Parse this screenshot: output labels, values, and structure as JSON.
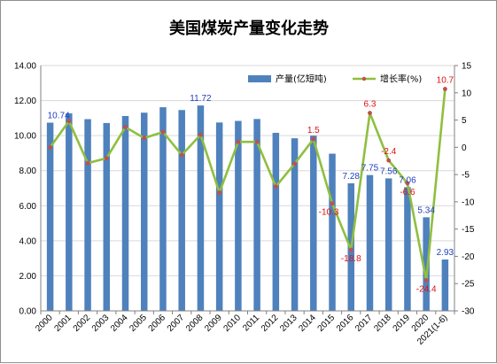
{
  "chart_data": {
    "type": "bar",
    "title": "美国煤炭产量变化走势",
    "categories": [
      "2000",
      "2001",
      "2002",
      "2003",
      "2004",
      "2005",
      "2006",
      "2007",
      "2008",
      "2009",
      "2010",
      "2011",
      "2012",
      "2013",
      "2014",
      "2015",
      "2016",
      "2017",
      "2018",
      "2019",
      "2020",
      "2021(1-6)"
    ],
    "series": [
      {
        "name": "产量(亿短吨)",
        "type": "bar",
        "axis": "left",
        "color": "#4f81bd",
        "values": [
          10.74,
          11.27,
          10.94,
          10.72,
          11.12,
          11.31,
          11.62,
          11.46,
          11.72,
          10.75,
          10.84,
          10.95,
          10.16,
          9.85,
          10.0,
          8.97,
          7.28,
          7.75,
          7.56,
          7.06,
          5.34,
          2.93
        ]
      },
      {
        "name": "增长率(%)",
        "type": "line",
        "axis": "right",
        "color": "#8fbf3f",
        "values": [
          0.0,
          4.8,
          -2.9,
          -2.0,
          3.7,
          1.7,
          2.8,
          -1.4,
          2.3,
          -8.3,
          1.0,
          1.0,
          -7.2,
          -3.0,
          1.5,
          -10.3,
          -18.8,
          6.3,
          -2.4,
          -6.6,
          -24.4,
          10.7
        ]
      }
    ],
    "y_left": {
      "lim": [
        0,
        14
      ],
      "ticks": [
        0,
        2,
        4,
        6,
        8,
        10,
        12,
        14
      ],
      "tick_labels": [
        "0.00",
        "2.00",
        "4.00",
        "6.00",
        "8.00",
        "10.00",
        "12.00",
        "14.00"
      ]
    },
    "y_right": {
      "lim": [
        -30,
        15
      ],
      "ticks": [
        15,
        10,
        5,
        0,
        -5,
        -10,
        -15,
        -20,
        -25,
        -30
      ],
      "tick_labels": [
        "15",
        "10",
        "5",
        "0",
        "-5",
        "-10",
        "-15",
        "-20",
        "-25",
        "-30"
      ]
    },
    "bar_data_labels": [
      {
        "index": 0,
        "text": "10.74"
      },
      {
        "index": 8,
        "text": "11.72"
      },
      {
        "index": 16,
        "text": "7.28"
      },
      {
        "index": 17,
        "text": "7.75"
      },
      {
        "index": 18,
        "text": "7.56"
      },
      {
        "index": 19,
        "text": "7.06"
      },
      {
        "index": 20,
        "text": "5.34"
      },
      {
        "index": 21,
        "text": "2.93"
      }
    ],
    "rate_data_labels": [
      {
        "index": 14,
        "text": "1.5"
      },
      {
        "index": 15,
        "text": "-10.3"
      },
      {
        "index": 16,
        "text": "-18.8"
      },
      {
        "index": 17,
        "text": "6.3"
      },
      {
        "index": 18,
        "text": "-2.4"
      },
      {
        "index": 19,
        "text": "-6.6"
      },
      {
        "index": 20,
        "text": "-24.4"
      },
      {
        "index": 21,
        "text": "10.7"
      }
    ],
    "legend": {
      "placement": "top-right",
      "items": [
        "产量(亿短吨)",
        "增长率(%)"
      ]
    },
    "grid": true
  }
}
